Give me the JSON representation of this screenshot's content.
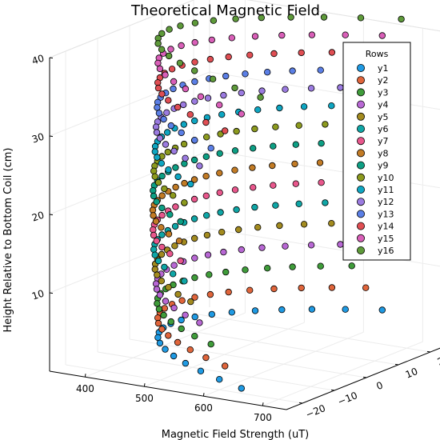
{
  "chart_data": {
    "type": "scatter",
    "title": "Theoretical Magnetic Field",
    "xlabel": "Magnetic Field Strength (uT)",
    "ylabel": "",
    "zlabel": "Height Relative to Bottom Coil (cm)",
    "xlim": [
      340,
      740
    ],
    "ylim": [
      -25,
      25
    ],
    "zlim": [
      0,
      40
    ],
    "x_ticks": [
      400,
      500,
      600,
      700
    ],
    "y_ticks": [
      -20,
      -10,
      0,
      10,
      20
    ],
    "z_ticks": [
      10,
      20,
      30,
      40
    ],
    "grid": true,
    "legend": {
      "title": "Rows",
      "position": "top-right"
    },
    "series": [
      {
        "name": "y1",
        "color": "#1f9ae3",
        "z": 2.5
      },
      {
        "name": "y2",
        "color": "#e0653b",
        "z": 5.0
      },
      {
        "name": "y3",
        "color": "#3f9c3a",
        "z": 7.5
      },
      {
        "name": "y4",
        "color": "#b868d4",
        "z": 10.0
      },
      {
        "name": "y5",
        "color": "#a38b1f",
        "z": 12.5
      },
      {
        "name": "y6",
        "color": "#0fa6a6",
        "z": 15.0
      },
      {
        "name": "y7",
        "color": "#e8578c",
        "z": 17.5
      },
      {
        "name": "y8",
        "color": "#c27b25",
        "z": 20.0
      },
      {
        "name": "y9",
        "color": "#0d9f84",
        "z": 22.5
      },
      {
        "name": "y10",
        "color": "#8c9a1e",
        "z": 25.0
      },
      {
        "name": "y11",
        "color": "#0ea6c2",
        "z": 27.5
      },
      {
        "name": "y12",
        "color": "#9b7be0",
        "z": 30.0
      },
      {
        "name": "y13",
        "color": "#5b7fe6",
        "z": 32.5
      },
      {
        "name": "y14",
        "color": "#e04e53",
        "z": 35.0
      },
      {
        "name": "y15",
        "color": "#d95fb8",
        "z": 37.5
      },
      {
        "name": "y16",
        "color": "#5e9a3a",
        "z": 40.0
      }
    ],
    "shape": {
      "point_count": 20,
      "y_range": [
        -22,
        22
      ],
      "x_base": 400,
      "x_quad": 280,
      "x_mid_wave": 45,
      "z_tilt": 1.4
    }
  }
}
